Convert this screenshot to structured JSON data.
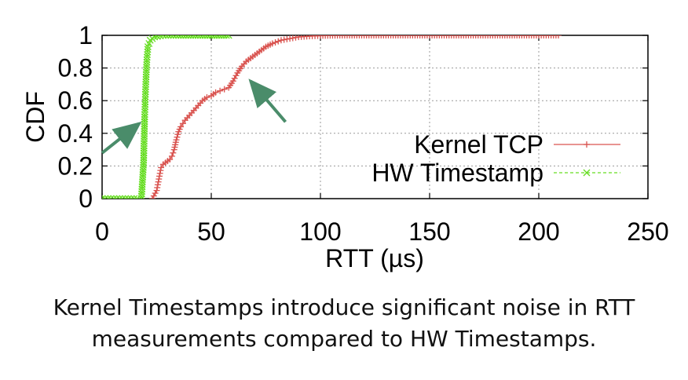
{
  "chart_data": {
    "type": "line",
    "title": "",
    "xlabel": "RTT (µs)",
    "ylabel": "CDF",
    "xlim": [
      0,
      250
    ],
    "ylim": [
      0,
      1
    ],
    "xticks": [
      "0",
      "50",
      "100",
      "150",
      "200",
      "250"
    ],
    "yticks": [
      "0",
      "0.2",
      "0.4",
      "0.6",
      "0.8",
      "1"
    ],
    "grid": true,
    "legend_position": "bottom-right",
    "series": [
      {
        "name": "Kernel TCP",
        "color": "#d9534f",
        "marker": "plus",
        "line_style": "solid",
        "x": [
          23,
          25,
          26,
          27,
          28,
          29,
          30,
          31,
          32,
          33,
          34,
          35,
          36,
          37,
          38,
          40,
          42,
          44,
          46,
          48,
          50,
          52,
          54,
          56,
          58,
          60,
          62,
          64,
          66,
          68,
          70,
          72,
          75,
          78,
          82,
          86,
          90,
          95,
          100,
          110,
          120,
          140,
          160,
          180,
          200,
          209
        ],
        "y": [
          0.0,
          0.05,
          0.12,
          0.19,
          0.21,
          0.22,
          0.23,
          0.24,
          0.26,
          0.3,
          0.36,
          0.41,
          0.44,
          0.46,
          0.48,
          0.51,
          0.54,
          0.57,
          0.6,
          0.62,
          0.63,
          0.65,
          0.66,
          0.67,
          0.68,
          0.72,
          0.77,
          0.81,
          0.84,
          0.86,
          0.88,
          0.9,
          0.93,
          0.95,
          0.97,
          0.98,
          0.99,
          0.995,
          0.998,
          1.0,
          1.0,
          1.0,
          1.0,
          1.0,
          1.0,
          1.0
        ]
      },
      {
        "name": "HW Timestamp",
        "color": "#66dd22",
        "marker": "x",
        "line_style": "dashed",
        "x": [
          0,
          4,
          8,
          12,
          16,
          18,
          19,
          19.5,
          20,
          20.5,
          21,
          22,
          24,
          28,
          35,
          45,
          58
        ],
        "y": [
          0.0,
          0.0,
          0.0,
          0.0,
          0.0,
          0.0,
          0.22,
          0.5,
          0.7,
          0.85,
          0.93,
          0.97,
          0.99,
          1.0,
          1.0,
          1.0,
          1.0
        ]
      }
    ],
    "annotations": [
      {
        "type": "arrow",
        "color": "#4a8c6a",
        "from": [
          0,
          0.28
        ],
        "to": [
          17,
          0.46
        ]
      },
      {
        "type": "arrow",
        "color": "#4a8c6a",
        "from": [
          84,
          0.47
        ],
        "to": [
          68,
          0.72
        ]
      }
    ]
  },
  "caption": {
    "line1": "Kernel Timestamps introduce significant noise in RTT",
    "line2": "measurements compared to HW Timestamps."
  }
}
